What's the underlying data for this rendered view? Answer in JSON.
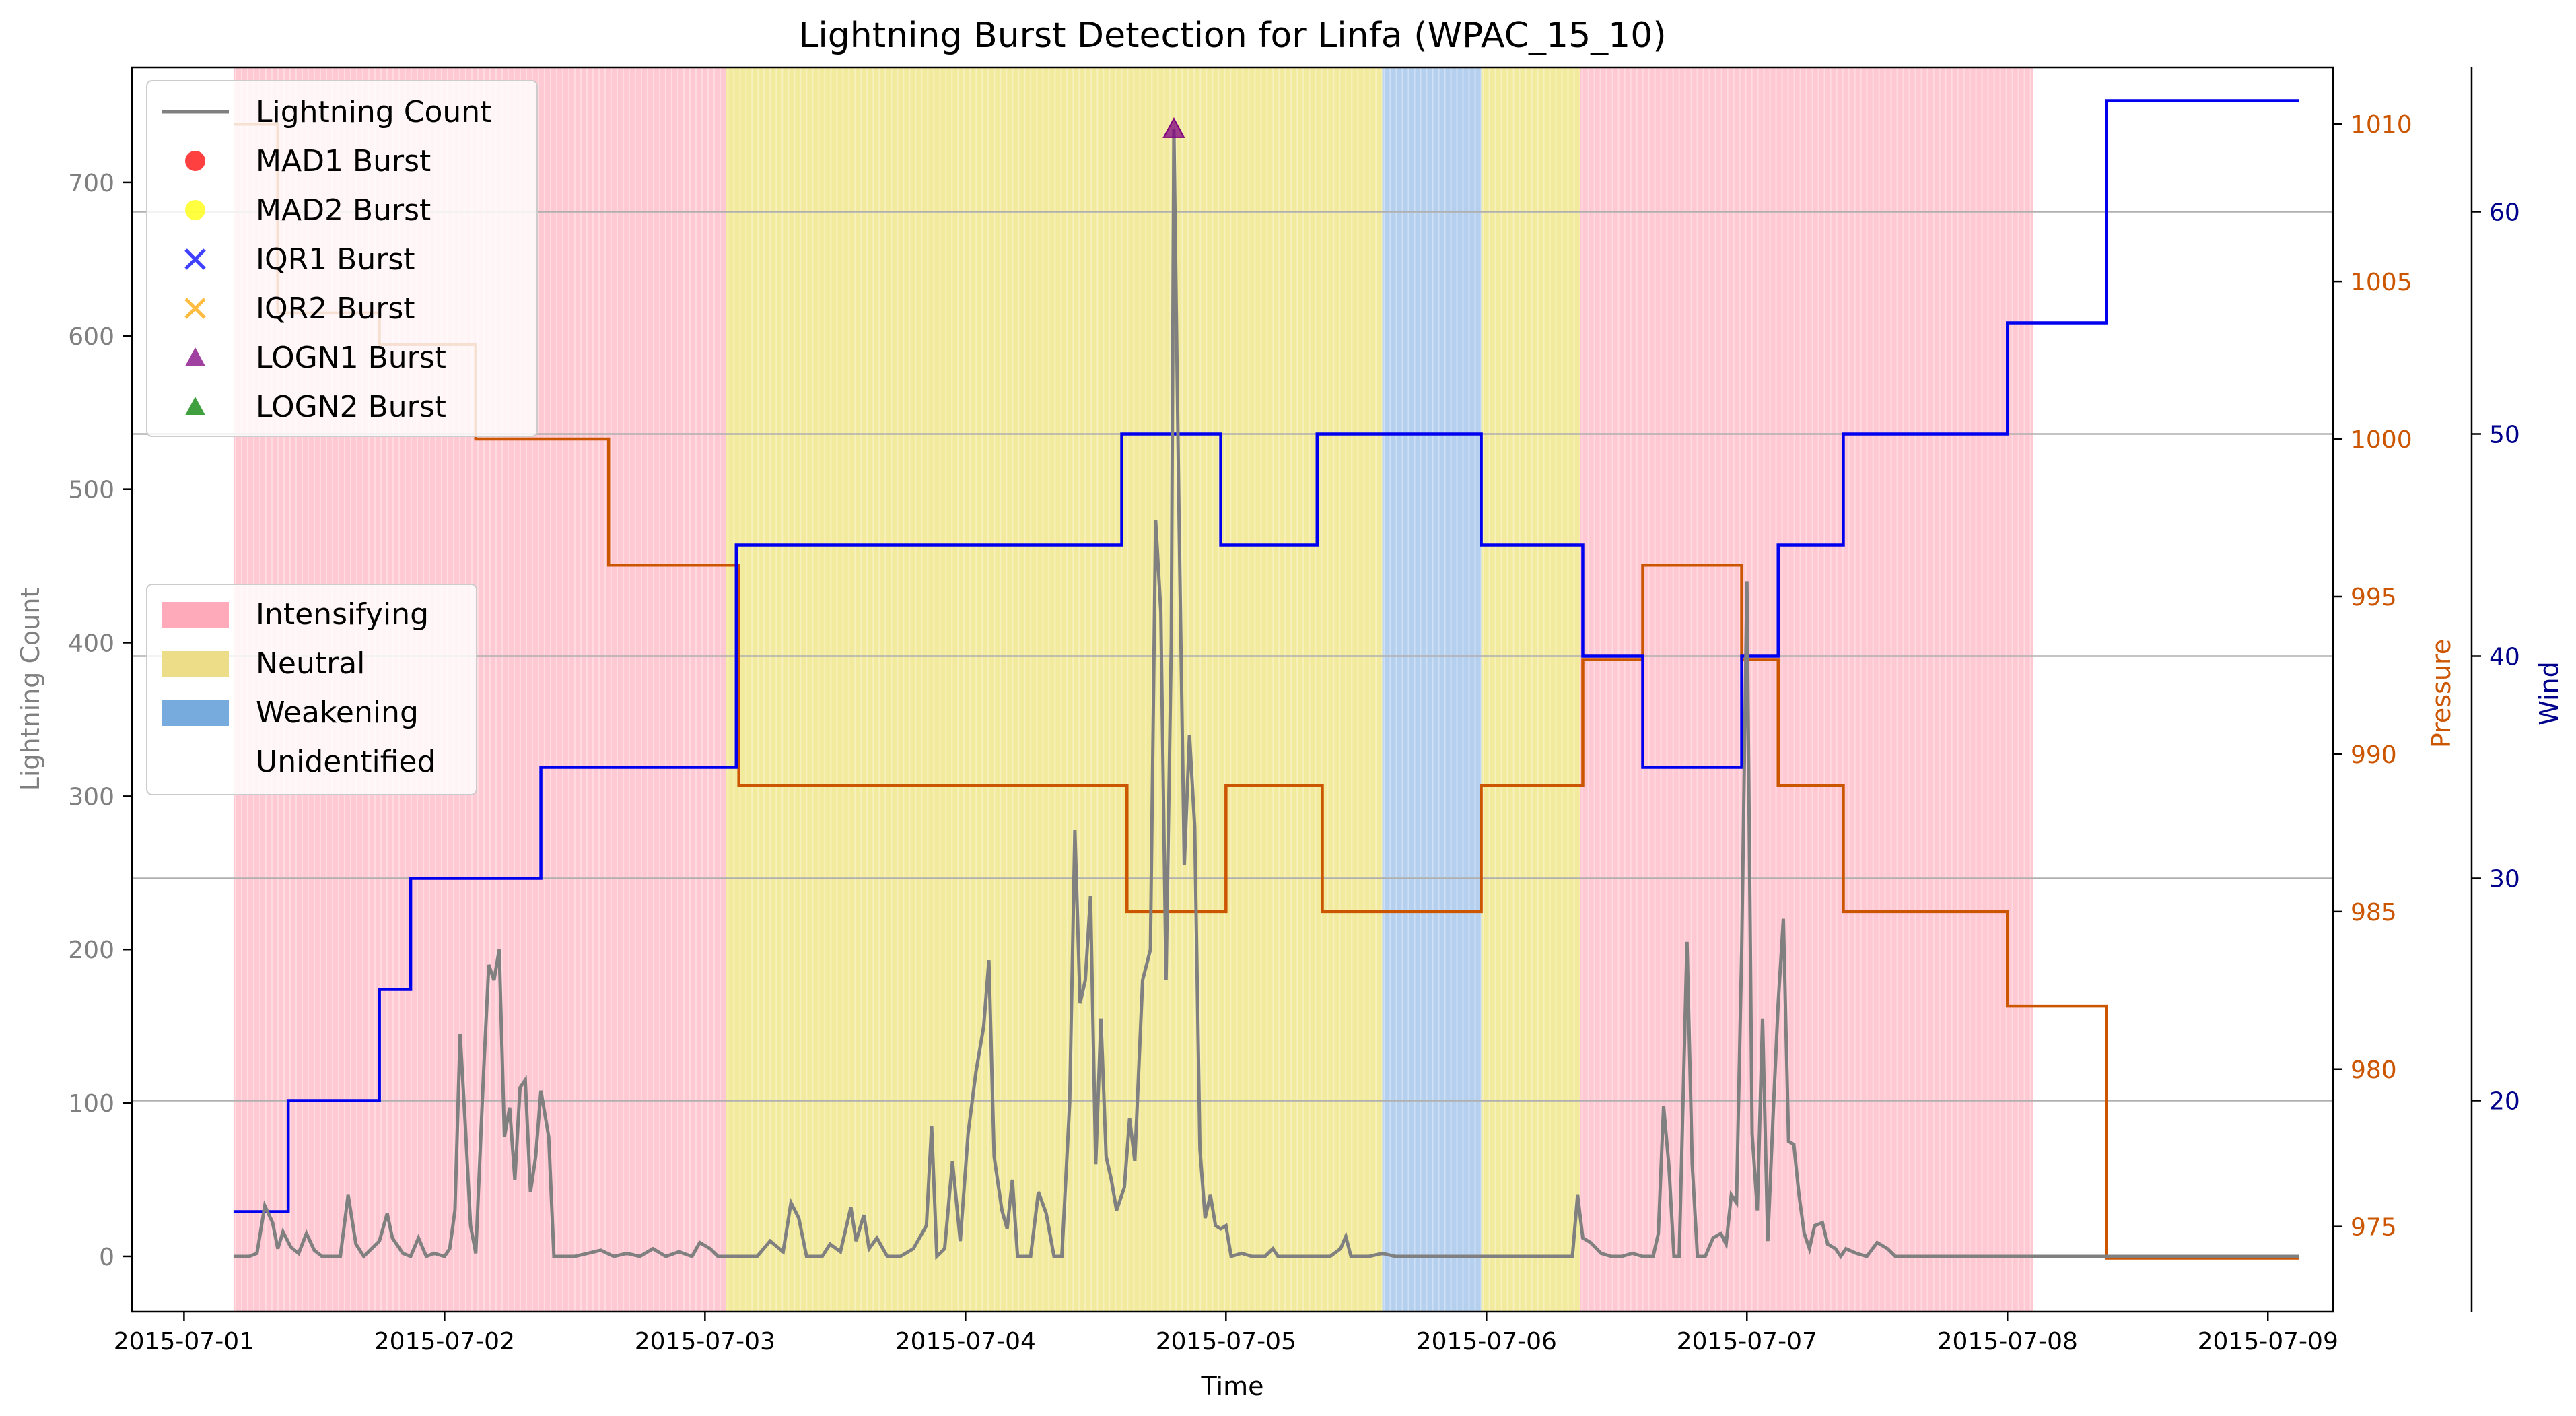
{
  "chart_data": {
    "type": "line",
    "title": "Lightning Burst Detection for Linfa (WPAC_15_10)",
    "xlabel": "Time",
    "ylabel_left": "Lightning Count",
    "ylabel_pressure": "Pressure",
    "ylabel_wind": "Wind",
    "x_ticks": [
      "2015-07-01",
      "2015-07-02",
      "2015-07-03",
      "2015-07-04",
      "2015-07-05",
      "2015-07-06",
      "2015-07-07",
      "2015-07-08",
      "2015-07-09"
    ],
    "xlim_days": [
      -0.2,
      8.25
    ],
    "ylim_count": [
      -36,
      775
    ],
    "ylim_pressure": [
      972.3,
      1011.8
    ],
    "ylim_wind": [
      10.5,
      66.5
    ],
    "y_ticks_count": [
      0,
      100,
      200,
      300,
      400,
      500,
      600,
      700
    ],
    "y_ticks_pressure": [
      975,
      980,
      985,
      990,
      995,
      1000,
      1005,
      1010
    ],
    "y_ticks_wind": [
      20,
      30,
      40,
      50,
      60
    ],
    "grid": "horizontal lines at wind ticks",
    "colors": {
      "lightning": "#808080",
      "pressure": "#cc5500",
      "wind": "#0000ee",
      "intensifying": "#ffc0cb",
      "neutral": "#f0e68c",
      "weakening": "#a8c8ec",
      "mad1": "#ff0000",
      "mad2": "#ffff00",
      "iqr1": "#0000ff",
      "iqr2": "#ffa500",
      "logn1": "#800080",
      "logn2": "#008000",
      "left_axis": "#808080",
      "pressure_axis": "#cc5500",
      "wind_axis": "#00008b"
    },
    "legend_series": [
      {
        "label": "Lightning Count",
        "marker": "line",
        "color": "#808080"
      },
      {
        "label": "MAD1 Burst",
        "marker": "circle",
        "color": "#ff0000"
      },
      {
        "label": "MAD2 Burst",
        "marker": "circle",
        "color": "#ffff00"
      },
      {
        "label": "IQR1 Burst",
        "marker": "x",
        "color": "#0000ff"
      },
      {
        "label": "IQR2 Burst",
        "marker": "x",
        "color": "#ffa500"
      },
      {
        "label": "LOGN1 Burst",
        "marker": "triangle",
        "color": "#800080"
      },
      {
        "label": "LOGN2 Burst",
        "marker": "triangle",
        "color": "#008000"
      }
    ],
    "legend_phases": [
      {
        "label": "Intensifying",
        "color": "#ffaabb"
      },
      {
        "label": "Neutral",
        "color": "#eedd88"
      },
      {
        "label": "Weakening",
        "color": "#77aadd"
      },
      {
        "label": "Unidentified",
        "color": "#ffffff"
      }
    ],
    "phase_regions": [
      {
        "phase": "Intensifying",
        "start": 0.19,
        "end": 2.08
      },
      {
        "phase": "Neutral",
        "start": 2.08,
        "end": 4.6
      },
      {
        "phase": "Weakening",
        "start": 4.6,
        "end": 4.98
      },
      {
        "phase": "Neutral",
        "start": 4.98,
        "end": 5.36
      },
      {
        "phase": "Intensifying",
        "start": 5.36,
        "end": 7.1
      }
    ],
    "pressure_steps": [
      [
        0.19,
        1010
      ],
      [
        0.36,
        1004
      ],
      [
        0.75,
        1003
      ],
      [
        1.12,
        1000
      ],
      [
        1.63,
        996
      ],
      [
        2.13,
        989
      ],
      [
        3.62,
        985
      ],
      [
        4.0,
        989
      ],
      [
        4.37,
        985
      ],
      [
        4.98,
        989
      ],
      [
        5.37,
        993
      ],
      [
        5.6,
        996
      ],
      [
        5.98,
        993
      ],
      [
        6.12,
        989
      ],
      [
        6.37,
        985
      ],
      [
        7.0,
        982
      ],
      [
        7.38,
        974
      ],
      [
        8.12,
        974
      ]
    ],
    "wind_steps": [
      [
        0.19,
        15
      ],
      [
        0.4,
        20
      ],
      [
        0.75,
        25
      ],
      [
        0.87,
        30
      ],
      [
        1.37,
        35
      ],
      [
        2.12,
        45
      ],
      [
        3.6,
        50
      ],
      [
        3.98,
        45
      ],
      [
        4.35,
        50
      ],
      [
        4.98,
        45
      ],
      [
        5.37,
        40
      ],
      [
        5.6,
        35
      ],
      [
        5.98,
        40
      ],
      [
        6.12,
        45
      ],
      [
        6.37,
        50
      ],
      [
        7.0,
        55
      ],
      [
        7.38,
        65
      ],
      [
        8.12,
        65
      ]
    ],
    "lightning_count": [
      [
        0.19,
        0
      ],
      [
        0.25,
        0
      ],
      [
        0.28,
        2
      ],
      [
        0.31,
        33
      ],
      [
        0.34,
        22
      ],
      [
        0.36,
        5
      ],
      [
        0.38,
        16
      ],
      [
        0.41,
        6
      ],
      [
        0.44,
        2
      ],
      [
        0.47,
        15
      ],
      [
        0.5,
        4
      ],
      [
        0.53,
        0
      ],
      [
        0.57,
        0
      ],
      [
        0.6,
        0
      ],
      [
        0.63,
        40
      ],
      [
        0.66,
        8
      ],
      [
        0.69,
        0
      ],
      [
        0.72,
        5
      ],
      [
        0.75,
        10
      ],
      [
        0.78,
        28
      ],
      [
        0.8,
        12
      ],
      [
        0.84,
        2
      ],
      [
        0.87,
        0
      ],
      [
        0.9,
        12
      ],
      [
        0.93,
        0
      ],
      [
        0.96,
        2
      ],
      [
        1.0,
        0
      ],
      [
        1.02,
        5
      ],
      [
        1.04,
        30
      ],
      [
        1.06,
        145
      ],
      [
        1.08,
        85
      ],
      [
        1.1,
        20
      ],
      [
        1.12,
        2
      ],
      [
        1.15,
        120
      ],
      [
        1.17,
        190
      ],
      [
        1.19,
        180
      ],
      [
        1.21,
        200
      ],
      [
        1.23,
        78
      ],
      [
        1.25,
        97
      ],
      [
        1.27,
        50
      ],
      [
        1.29,
        110
      ],
      [
        1.31,
        115
      ],
      [
        1.33,
        42
      ],
      [
        1.35,
        65
      ],
      [
        1.37,
        108
      ],
      [
        1.4,
        78
      ],
      [
        1.42,
        0
      ],
      [
        1.46,
        0
      ],
      [
        1.5,
        0
      ],
      [
        1.55,
        2
      ],
      [
        1.6,
        4
      ],
      [
        1.65,
        0
      ],
      [
        1.7,
        2
      ],
      [
        1.75,
        0
      ],
      [
        1.8,
        5
      ],
      [
        1.85,
        0
      ],
      [
        1.9,
        3
      ],
      [
        1.95,
        0
      ],
      [
        1.98,
        9
      ],
      [
        2.02,
        5
      ],
      [
        2.05,
        0
      ],
      [
        2.1,
        0
      ],
      [
        2.15,
        0
      ],
      [
        2.2,
        0
      ],
      [
        2.25,
        10
      ],
      [
        2.3,
        3
      ],
      [
        2.33,
        35
      ],
      [
        2.36,
        25
      ],
      [
        2.39,
        0
      ],
      [
        2.45,
        0
      ],
      [
        2.48,
        8
      ],
      [
        2.52,
        3
      ],
      [
        2.56,
        32
      ],
      [
        2.58,
        10
      ],
      [
        2.61,
        27
      ],
      [
        2.63,
        5
      ],
      [
        2.66,
        12
      ],
      [
        2.7,
        0
      ],
      [
        2.75,
        0
      ],
      [
        2.8,
        5
      ],
      [
        2.85,
        20
      ],
      [
        2.87,
        85
      ],
      [
        2.89,
        0
      ],
      [
        2.92,
        5
      ],
      [
        2.95,
        62
      ],
      [
        2.98,
        10
      ],
      [
        3.01,
        80
      ],
      [
        3.04,
        120
      ],
      [
        3.07,
        150
      ],
      [
        3.09,
        193
      ],
      [
        3.11,
        65
      ],
      [
        3.14,
        30
      ],
      [
        3.16,
        18
      ],
      [
        3.18,
        50
      ],
      [
        3.2,
        0
      ],
      [
        3.25,
        0
      ],
      [
        3.28,
        42
      ],
      [
        3.31,
        28
      ],
      [
        3.34,
        0
      ],
      [
        3.37,
        0
      ],
      [
        3.4,
        100
      ],
      [
        3.42,
        278
      ],
      [
        3.44,
        165
      ],
      [
        3.46,
        180
      ],
      [
        3.48,
        235
      ],
      [
        3.5,
        60
      ],
      [
        3.52,
        155
      ],
      [
        3.54,
        65
      ],
      [
        3.56,
        50
      ],
      [
        3.58,
        30
      ],
      [
        3.61,
        45
      ],
      [
        3.63,
        90
      ],
      [
        3.65,
        62
      ],
      [
        3.68,
        180
      ],
      [
        3.71,
        200
      ],
      [
        3.73,
        480
      ],
      [
        3.75,
        420
      ],
      [
        3.77,
        180
      ],
      [
        3.79,
        400
      ],
      [
        3.8,
        735
      ],
      [
        3.82,
        480
      ],
      [
        3.84,
        255
      ],
      [
        3.86,
        340
      ],
      [
        3.88,
        280
      ],
      [
        3.9,
        70
      ],
      [
        3.92,
        25
      ],
      [
        3.94,
        40
      ],
      [
        3.96,
        20
      ],
      [
        3.98,
        18
      ],
      [
        4.0,
        20
      ],
      [
        4.02,
        0
      ],
      [
        4.06,
        2
      ],
      [
        4.1,
        0
      ],
      [
        4.15,
        0
      ],
      [
        4.18,
        5
      ],
      [
        4.2,
        0
      ],
      [
        4.25,
        0
      ],
      [
        4.3,
        0
      ],
      [
        4.35,
        0
      ],
      [
        4.4,
        0
      ],
      [
        4.44,
        5
      ],
      [
        4.46,
        13
      ],
      [
        4.48,
        0
      ],
      [
        4.55,
        0
      ],
      [
        4.6,
        2
      ],
      [
        4.65,
        0
      ],
      [
        4.8,
        0
      ],
      [
        5.0,
        0
      ],
      [
        5.2,
        0
      ],
      [
        5.33,
        0
      ],
      [
        5.35,
        40
      ],
      [
        5.37,
        12
      ],
      [
        5.4,
        9
      ],
      [
        5.44,
        2
      ],
      [
        5.48,
        0
      ],
      [
        5.52,
        0
      ],
      [
        5.56,
        2
      ],
      [
        5.6,
        0
      ],
      [
        5.64,
        0
      ],
      [
        5.66,
        15
      ],
      [
        5.68,
        98
      ],
      [
        5.7,
        60
      ],
      [
        5.72,
        0
      ],
      [
        5.74,
        0
      ],
      [
        5.77,
        205
      ],
      [
        5.79,
        60
      ],
      [
        5.81,
        0
      ],
      [
        5.84,
        0
      ],
      [
        5.87,
        12
      ],
      [
        5.9,
        15
      ],
      [
        5.92,
        8
      ],
      [
        5.94,
        40
      ],
      [
        5.96,
        35
      ],
      [
        5.98,
        200
      ],
      [
        6.0,
        440
      ],
      [
        6.02,
        80
      ],
      [
        6.04,
        30
      ],
      [
        6.06,
        155
      ],
      [
        6.08,
        10
      ],
      [
        6.1,
        90
      ],
      [
        6.12,
        165
      ],
      [
        6.14,
        220
      ],
      [
        6.16,
        75
      ],
      [
        6.18,
        73
      ],
      [
        6.2,
        40
      ],
      [
        6.22,
        15
      ],
      [
        6.24,
        5
      ],
      [
        6.26,
        20
      ],
      [
        6.29,
        22
      ],
      [
        6.31,
        8
      ],
      [
        6.34,
        5
      ],
      [
        6.36,
        0
      ],
      [
        6.38,
        5
      ],
      [
        6.42,
        2
      ],
      [
        6.46,
        0
      ],
      [
        6.5,
        9
      ],
      [
        6.54,
        5
      ],
      [
        6.57,
        0
      ],
      [
        6.7,
        0
      ],
      [
        7.0,
        0
      ],
      [
        7.5,
        0
      ],
      [
        8.0,
        0
      ],
      [
        8.12,
        0
      ]
    ],
    "bursts": [
      {
        "method": "LOGN1",
        "x": 3.8,
        "y": 735
      }
    ]
  }
}
